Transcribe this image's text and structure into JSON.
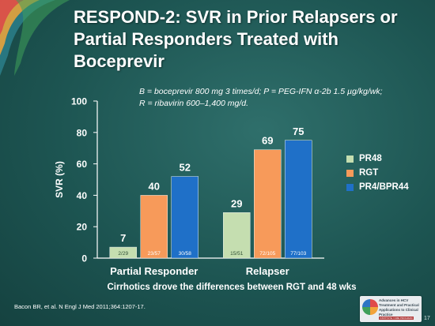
{
  "slide": {
    "title": "RESPOND-2: SVR in Prior Relapsers or Partial Responders Treated with Boceprevir",
    "note_line1": "B = boceprevir 800 mg 3 times/d; P = PEG-IFN α-2b 1.5 µg/kg/wk;",
    "note_line2": "R = ribavirin 600–1,400 mg/d.",
    "caption": "Cirrhotics drove the differences between RGT and 48 wks",
    "footnote": "Bacon BR, et al. N Engl J Med 2011;364:1207-17.",
    "slide_number": "17"
  },
  "logo": {
    "text": "Advances in HCV Treatment and Practical Applications to Clinical Practice",
    "tag": "INSTITUTE / CME PROGRAM"
  },
  "chart_data": {
    "type": "bar",
    "categories": [
      "Partial Responder",
      "Relapser"
    ],
    "ylabel": "SVR (%)",
    "ylim": [
      0,
      100
    ],
    "yticks": [
      0,
      20,
      40,
      60,
      80,
      100
    ],
    "legend_position": "right",
    "series": [
      {
        "name": "PR48",
        "color": "#c5deb0",
        "values": [
          7,
          29
        ],
        "labels": [
          "7",
          "29"
        ],
        "inner_labels": [
          "2/29",
          "15/51"
        ]
      },
      {
        "name": "RGT",
        "color": "#f79a5a",
        "values": [
          40,
          69
        ],
        "labels": [
          "40",
          "69"
        ],
        "inner_labels": [
          "23/57",
          "72/105"
        ]
      },
      {
        "name": "PR4/BPR44",
        "color": "#1f70c8",
        "values": [
          52,
          75
        ],
        "labels": [
          "52",
          "75"
        ],
        "inner_labels": [
          "30/58",
          "77/103"
        ]
      }
    ]
  },
  "colors": {
    "background": "#1f5a58",
    "axis": "#ffffff"
  }
}
